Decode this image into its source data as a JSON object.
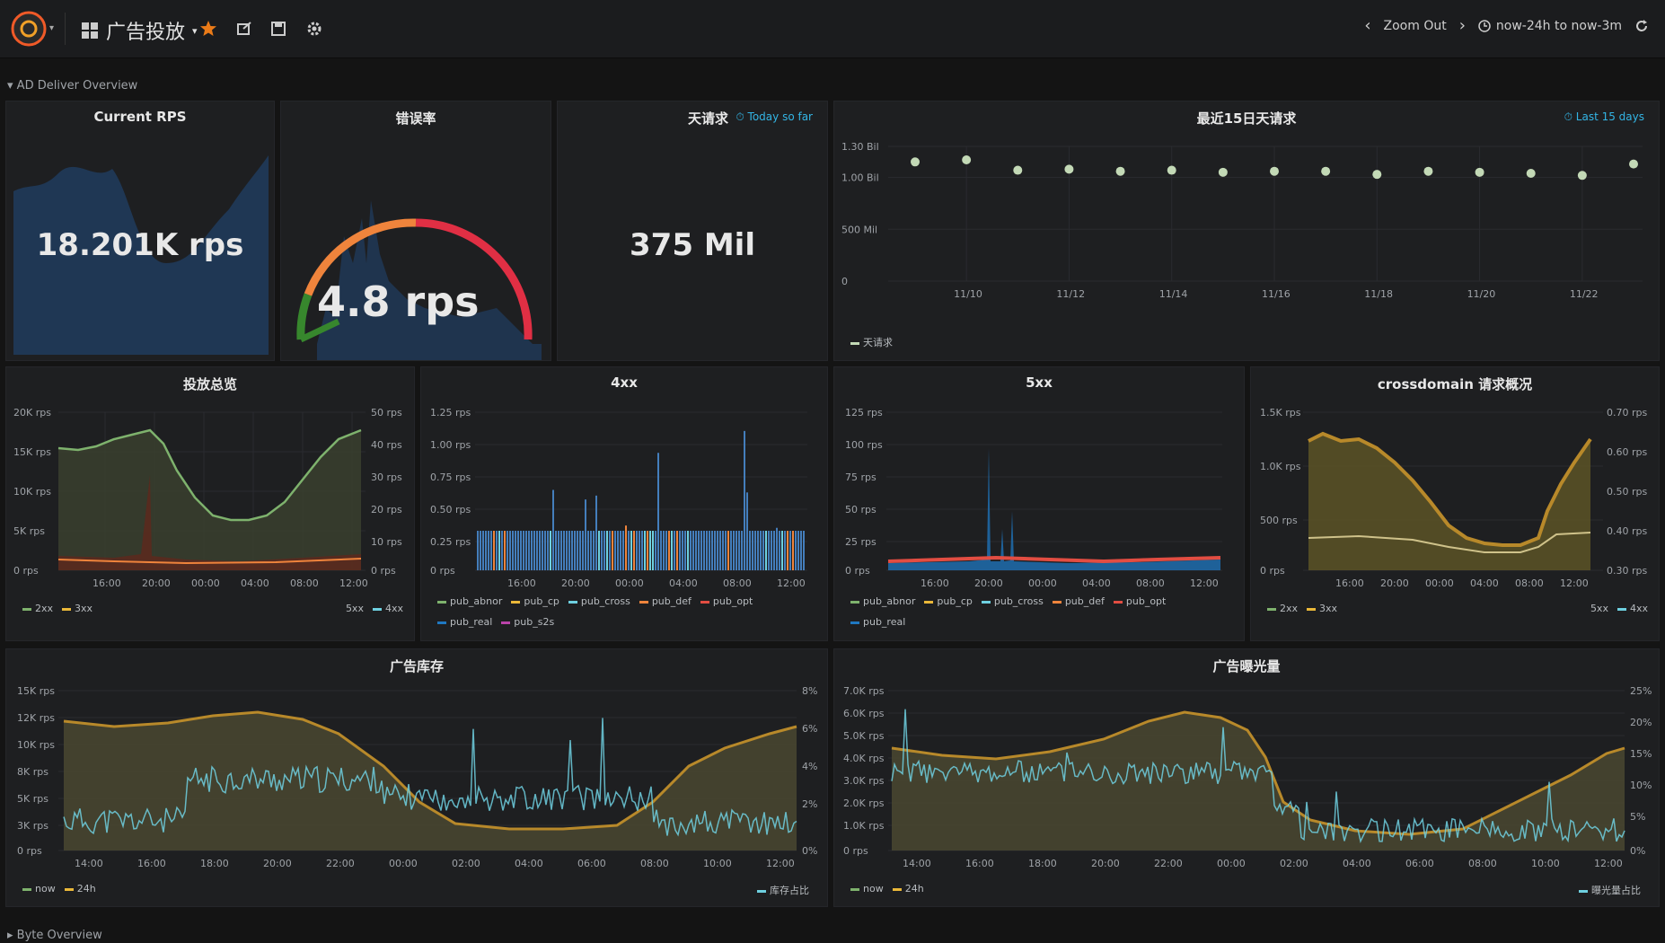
{
  "header": {
    "dashboard_title": "广告投放",
    "time_range_label": "now-24h to now-3m",
    "zoom_out_label": "Zoom Out"
  },
  "rows": {
    "overview": "AD Deliver Overview",
    "byte": "Byte Overview"
  },
  "colors": {
    "accent": "#33b5e5",
    "green": "#7eb26d",
    "red": "#e24d42",
    "orange": "#ef843c",
    "yellow": "#cca300",
    "blue": "#1f78c1",
    "cyan": "#6ed0e0"
  },
  "panels": {
    "current_rps": {
      "title": "Current RPS",
      "value": "18.201K rps"
    },
    "gauge": {
      "title": "错误率",
      "value": "4.8 rps"
    },
    "single": {
      "title": "天请求",
      "badge": "Today so far",
      "value": "375 Mil"
    },
    "daily": {
      "title": "最近15日天请求",
      "badge": "Last 15 days",
      "legend": "天请求"
    },
    "p1": {
      "title": "投放总览"
    },
    "p2": {
      "title": "4xx"
    },
    "p3": {
      "title": "5xx"
    },
    "p4": {
      "title": "crossdomain 请求概况"
    },
    "p5": {
      "title": "广告库存"
    },
    "p6": {
      "title": "广告曝光量"
    }
  },
  "legends": {
    "p1": [
      "2xx",
      "3xx"
    ],
    "p1r": [
      "5xx",
      "4xx"
    ],
    "p2": [
      "pub_abnor",
      "pub_cp",
      "pub_cross",
      "pub_def",
      "pub_opt",
      "pub_real",
      "pub_s2s"
    ],
    "p3": [
      "pub_abnor",
      "pub_cp",
      "pub_cross",
      "pub_def",
      "pub_opt",
      "pub_real"
    ],
    "p4": [
      "2xx",
      "3xx"
    ],
    "p4r": [
      "5xx",
      "4xx"
    ],
    "p5": [
      "now",
      "24h"
    ],
    "p5r": [
      "库存占比"
    ],
    "p6": [
      "now",
      "24h"
    ],
    "p6r": [
      "曝光量占比"
    ]
  },
  "chart_data": [
    {
      "type": "scatter",
      "title": "最近15日天请求",
      "x": [
        "11/09",
        "11/10",
        "11/11",
        "11/12",
        "11/13",
        "11/14",
        "11/15",
        "11/16",
        "11/17",
        "11/18",
        "11/19",
        "11/20",
        "11/21",
        "11/22",
        "11/23"
      ],
      "values": [
        1150,
        1170,
        1070,
        1080,
        1060,
        1070,
        1050,
        1060,
        1060,
        1030,
        1060,
        1050,
        1040,
        1020,
        1130
      ],
      "ylim": [
        0,
        1300
      ],
      "y_ticks": [
        "1.30 Bil",
        "1.00 Bil",
        "500 Mil",
        "0"
      ],
      "x_ticks": [
        "11/10",
        "11/12",
        "11/14",
        "11/16",
        "11/18",
        "11/20",
        "11/22"
      ],
      "series_name": "天请求"
    },
    {
      "type": "area",
      "title": "投放总览",
      "x_ticks": [
        "16:00",
        "20:00",
        "00:00",
        "04:00",
        "08:00",
        "12:00"
      ],
      "y_ticks_left": [
        "20K rps",
        "15K rps",
        "10K rps",
        "5K rps",
        "0 rps"
      ],
      "y_ticks_right": [
        "50 rps",
        "40 rps",
        "30 rps",
        "20 rps",
        "10 rps",
        "0 rps"
      ],
      "series": [
        {
          "name": "2xx",
          "values": [
            15.5,
            15.2,
            15.8,
            16.2,
            16.5,
            15.8,
            14,
            11,
            8.5,
            7,
            6.2,
            5.8,
            6,
            6.8,
            8.5,
            11,
            13.5,
            15.5
          ]
        },
        {
          "name": "3xx",
          "values": [
            1.3,
            1.1,
            1.2,
            1.4,
            1.6,
            1.5,
            1.3,
            1.1,
            0.9,
            0.8,
            0.7,
            0.7,
            0.8,
            0.9,
            1.0,
            1.2,
            1.4,
            1.5
          ]
        }
      ]
    },
    {
      "type": "bar",
      "title": "4xx",
      "x_ticks": [
        "16:00",
        "20:00",
        "00:00",
        "04:00",
        "08:00",
        "12:00"
      ],
      "y_ticks": [
        "1.25 rps",
        "1.00 rps",
        "0.75 rps",
        "0.50 rps",
        "0.25 rps",
        "0 rps"
      ]
    },
    {
      "type": "line",
      "title": "5xx",
      "x_ticks": [
        "16:00",
        "20:00",
        "00:00",
        "04:00",
        "08:00",
        "12:00"
      ],
      "y_ticks": [
        "125 rps",
        "100 rps",
        "75 rps",
        "50 rps",
        "25 rps",
        "0 rps"
      ]
    },
    {
      "type": "area",
      "title": "crossdomain 请求概况",
      "x_ticks": [
        "16:00",
        "20:00",
        "00:00",
        "04:00",
        "08:00",
        "12:00"
      ],
      "y_ticks_left": [
        "1.5K rps",
        "1.0K rps",
        "500 rps",
        "0 rps"
      ],
      "y_ticks_right": [
        "0.70 rps",
        "0.60 rps",
        "0.50 rps",
        "0.40 rps",
        "0.30 rps"
      ],
      "series": [
        {
          "name": "2xx",
          "values": [
            1.25,
            1.22,
            1.2,
            1.1,
            1.05,
            0.95,
            0.75,
            0.55,
            0.35,
            0.22,
            0.2,
            0.2,
            0.22,
            0.3,
            0.55,
            0.95,
            1.2,
            1.25
          ]
        },
        {
          "name": "3xx",
          "values": [
            0.3,
            0.3,
            0.31,
            0.3,
            0.3,
            0.28,
            0.25,
            0.2,
            0.15,
            0.1,
            0.1,
            0.1,
            0.12,
            0.15,
            0.22,
            0.3,
            0.32,
            0.32
          ]
        }
      ]
    },
    {
      "type": "area",
      "title": "广告库存",
      "x_ticks": [
        "14:00",
        "16:00",
        "18:00",
        "20:00",
        "22:00",
        "00:00",
        "02:00",
        "04:00",
        "06:00",
        "08:00",
        "10:00",
        "12:00"
      ],
      "y_ticks_left": [
        "15K rps",
        "12K rps",
        "10K rps",
        "8K rps",
        "5K rps",
        "3K rps",
        "0 rps"
      ],
      "y_ticks_right": [
        "8%",
        "6%",
        "4%",
        "2%",
        "0%"
      ]
    },
    {
      "type": "area",
      "title": "广告曝光量",
      "x_ticks": [
        "14:00",
        "16:00",
        "18:00",
        "20:00",
        "22:00",
        "00:00",
        "02:00",
        "04:00",
        "06:00",
        "08:00",
        "10:00",
        "12:00"
      ],
      "y_ticks_left": [
        "7.0K rps",
        "6.0K rps",
        "5.0K rps",
        "4.0K rps",
        "3.0K rps",
        "2.0K rps",
        "1.0K rps",
        "0 rps"
      ],
      "y_ticks_right": [
        "25%",
        "20%",
        "15%",
        "10%",
        "5%",
        "0%"
      ]
    }
  ]
}
